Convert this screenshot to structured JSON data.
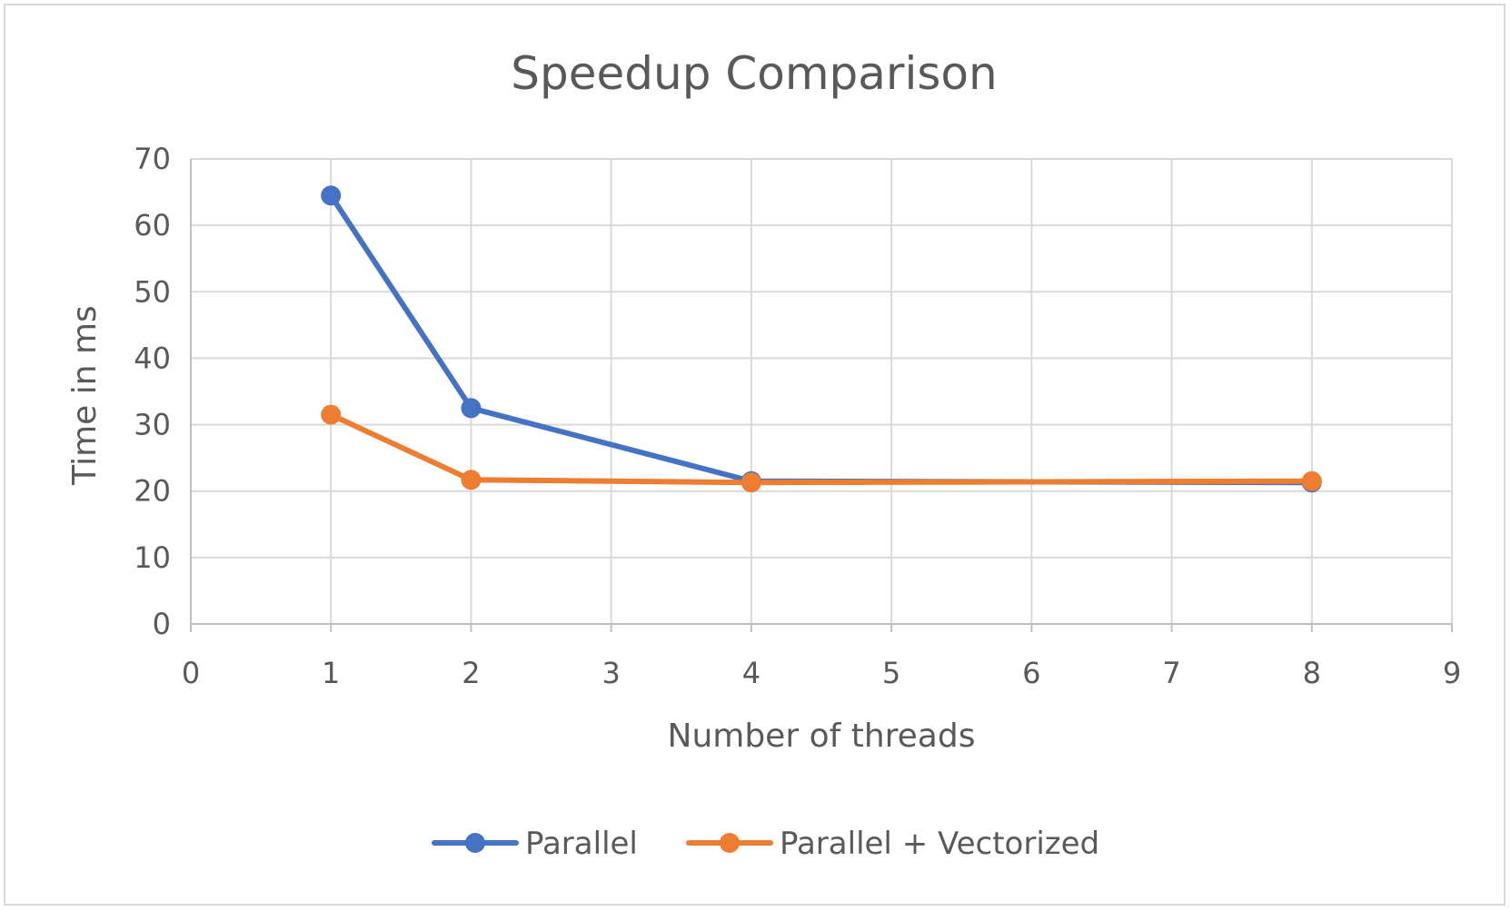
{
  "chart_data": {
    "type": "scatter",
    "title": "Speedup Comparison",
    "xlabel": "Number of threads",
    "ylabel": "Time in ms",
    "xlim": [
      0,
      9
    ],
    "ylim": [
      0,
      70
    ],
    "xticks": [
      0,
      1,
      2,
      3,
      4,
      5,
      6,
      7,
      8,
      9
    ],
    "yticks": [
      0,
      10,
      20,
      30,
      40,
      50,
      60,
      70
    ],
    "grid": true,
    "legend_position": "bottom",
    "series": [
      {
        "name": "Parallel",
        "color": "#4472C4",
        "x": [
          1,
          2,
          4,
          8
        ],
        "y": [
          64.5,
          32.5,
          21.5,
          21.3
        ]
      },
      {
        "name": "Parallel + Vectorized",
        "color": "#ED7D31",
        "x": [
          1,
          2,
          4,
          8
        ],
        "y": [
          31.5,
          21.7,
          21.3,
          21.5
        ]
      }
    ]
  }
}
